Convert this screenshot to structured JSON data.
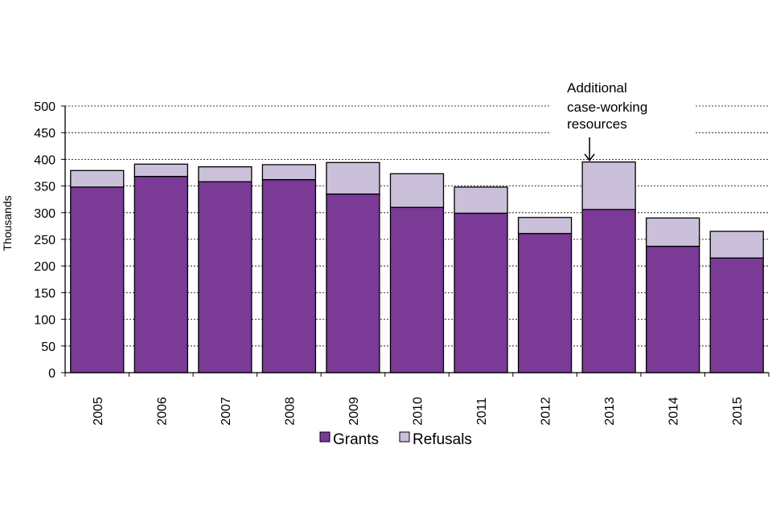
{
  "chart_data": {
    "type": "bar",
    "stacked": true,
    "categories": [
      "2005",
      "2006",
      "2007",
      "2008",
      "2009",
      "2010",
      "2011",
      "2012",
      "2013",
      "2014",
      "2015"
    ],
    "series": [
      {
        "name": "Grants",
        "values": [
          348,
          368,
          358,
          362,
          335,
          310,
          299,
          261,
          306,
          237,
          215
        ],
        "color": "#7a3a96"
      },
      {
        "name": "Refusals",
        "values": [
          31,
          23,
          28,
          28,
          59,
          63,
          49,
          30,
          89,
          53,
          50
        ],
        "color": "#cbc0da"
      }
    ],
    "title": "",
    "xlabel": "",
    "ylabel": "Thousands",
    "ylim": [
      0,
      500
    ],
    "yticks": [
      "0",
      "50",
      "100",
      "150",
      "200",
      "250",
      "300",
      "350",
      "400",
      "450",
      "500"
    ],
    "grid": "horizontal dashed",
    "legend_position": "bottom",
    "annotation": {
      "lines": [
        "Additional",
        "case-working",
        "resources"
      ],
      "category": "2013"
    }
  }
}
